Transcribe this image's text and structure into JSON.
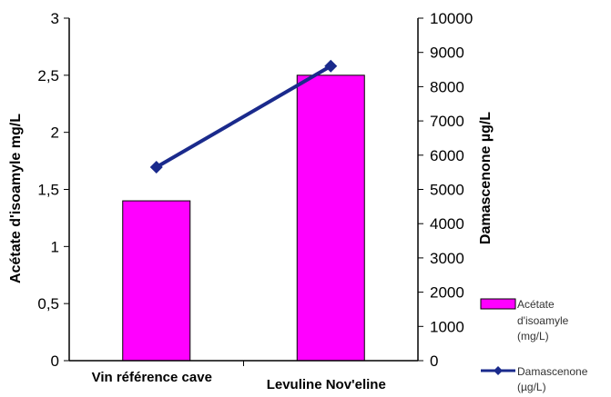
{
  "chart_data": {
    "type": "bar+line",
    "categories": [
      "Vin référence cave",
      "Levuline Nov'eline"
    ],
    "series": [
      {
        "name": "Acétate d'isoamyle (mg/L)",
        "type": "bar",
        "axis": "left",
        "values": [
          1.4,
          2.5
        ],
        "color": "#ff00ff",
        "legend_lines": [
          "Acétate",
          "d'isoamyle",
          "(mg/L)"
        ]
      },
      {
        "name": "Damascenone (µg/L)",
        "type": "line",
        "axis": "right",
        "values": [
          5650,
          8600
        ],
        "color": "#1a2a8c",
        "legend_lines": [
          "Damascenone",
          "(µg/L)"
        ]
      }
    ],
    "y_left": {
      "label": "Acétate d'isoamyle mg/L",
      "lim": [
        0,
        3
      ],
      "ticks": [
        0,
        0.5,
        1,
        1.5,
        2,
        2.5,
        3
      ],
      "tick_labels": [
        "0",
        "0,5",
        "1",
        "1,5",
        "2",
        "2,5",
        "3"
      ]
    },
    "y_right": {
      "label": "Damascenone µg/L",
      "lim": [
        0,
        10000
      ],
      "ticks": [
        0,
        1000,
        2000,
        3000,
        4000,
        5000,
        6000,
        7000,
        8000,
        9000,
        10000
      ],
      "tick_labels": [
        "0",
        "1000",
        "2000",
        "3000",
        "4000",
        "5000",
        "6000",
        "7000",
        "8000",
        "9000",
        "10000"
      ]
    },
    "grid": false,
    "legend_position": "right"
  }
}
